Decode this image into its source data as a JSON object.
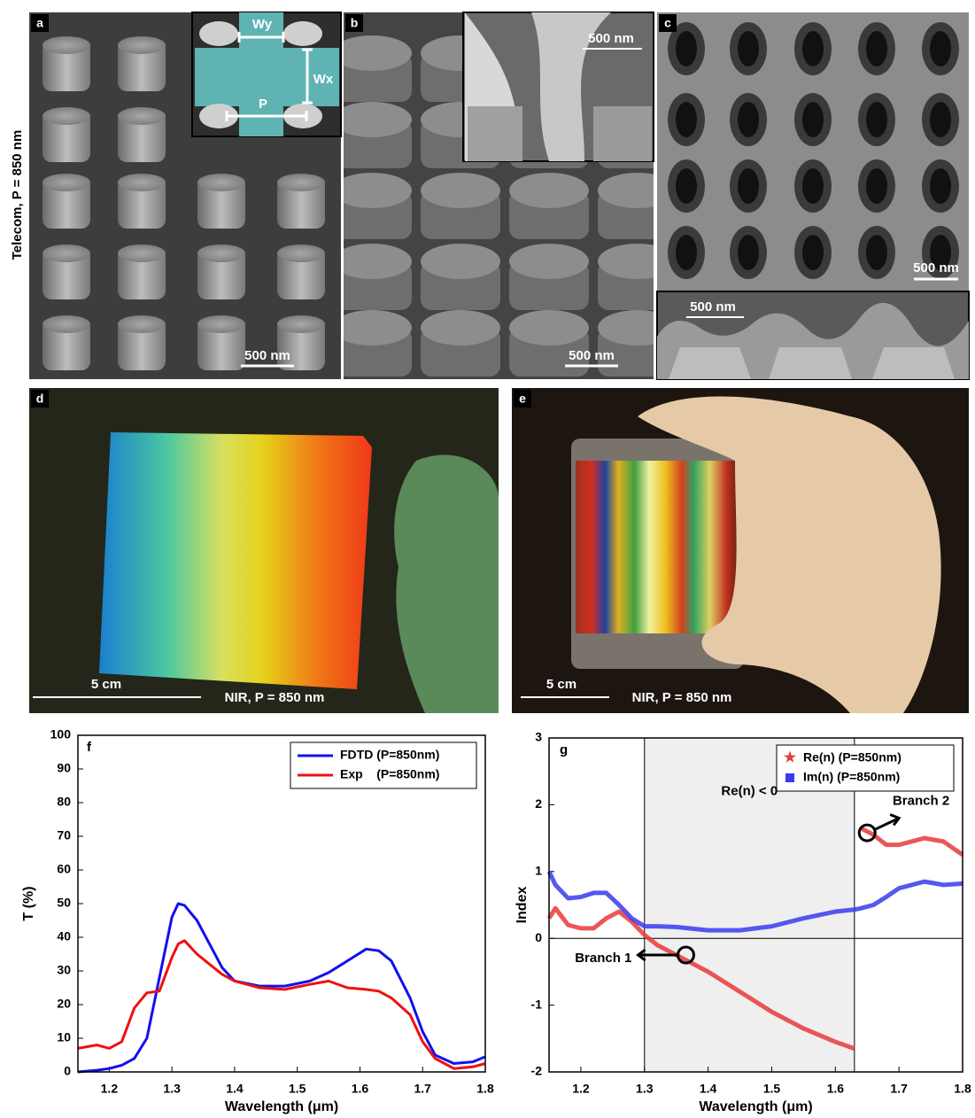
{
  "side_label": "Telecom, P = 850 nm",
  "panels": {
    "a": {
      "label": "a",
      "inset": {
        "wy": "Wy",
        "wx": "Wx",
        "p": "P"
      },
      "scale_bar": "500 nm"
    },
    "b": {
      "label": "b",
      "scale_bar": "500 nm",
      "inset_scale_bar": "500 nm"
    },
    "c": {
      "label": "c",
      "scale_bar": "500 nm",
      "lower_scale_bar": "500 nm"
    },
    "d": {
      "label": "d",
      "scale_bar": "5 cm",
      "caption": "NIR, P = 850 nm"
    },
    "e": {
      "label": "e",
      "scale_bar": "5 cm",
      "caption": "NIR, P = 850 nm"
    }
  },
  "chart_data": [
    {
      "type": "line",
      "panel_label": "f",
      "x_label": "Wavelength (μm)",
      "y_label": "T (%)",
      "x": [
        1.15,
        1.18,
        1.2,
        1.22,
        1.24,
        1.26,
        1.28,
        1.3,
        1.31,
        1.32,
        1.34,
        1.36,
        1.38,
        1.4,
        1.44,
        1.48,
        1.52,
        1.55,
        1.58,
        1.61,
        1.63,
        1.65,
        1.68,
        1.7,
        1.72,
        1.75,
        1.78,
        1.8
      ],
      "series": [
        {
          "name": "FDTD (P=850nm)",
          "color": "#1010f0",
          "values": [
            0,
            0.5,
            1,
            2,
            4,
            10,
            28,
            46,
            50,
            49.5,
            45,
            38,
            31,
            27,
            25.5,
            25.5,
            27,
            29.5,
            33,
            36.5,
            36,
            33,
            22,
            12,
            5,
            2.5,
            3,
            4.5
          ]
        },
        {
          "name": "Exp    (P=850nm)",
          "color": "#f01010",
          "values": [
            7,
            8,
            7,
            9,
            19,
            23.5,
            24,
            34,
            38,
            39,
            35,
            32,
            29,
            27,
            25,
            24.5,
            26,
            27,
            25,
            24.5,
            24,
            22,
            17,
            9,
            4,
            1,
            1.5,
            2.5
          ]
        }
      ],
      "xlim": [
        1.15,
        1.8
      ],
      "ylim": [
        0,
        100
      ],
      "xticks": [
        1.2,
        1.3,
        1.4,
        1.5,
        1.6,
        1.7,
        1.8
      ],
      "yticks": [
        0,
        10,
        20,
        30,
        40,
        50,
        60,
        70,
        80,
        90,
        100
      ],
      "legend": "upper right"
    },
    {
      "type": "line",
      "panel_label": "g",
      "x_label": "Wavelength (μm)",
      "y_label": "Index",
      "x": [
        1.15,
        1.16,
        1.18,
        1.2,
        1.22,
        1.24,
        1.26,
        1.28,
        1.3,
        1.32,
        1.35,
        1.4,
        1.45,
        1.5,
        1.55,
        1.6,
        1.63,
        1.635,
        1.64,
        1.66,
        1.68,
        1.7,
        1.74,
        1.77,
        1.8
      ],
      "series": [
        {
          "name": "Re(n) (P=850nm)",
          "color": "#e83a3a",
          "marker": "star",
          "values": [
            0.3,
            0.45,
            0.2,
            0.15,
            0.15,
            0.3,
            0.4,
            0.25,
            0.05,
            -0.1,
            -0.25,
            -0.5,
            -0.8,
            -1.1,
            -1.35,
            -1.55,
            -1.65,
            null,
            1.65,
            1.55,
            1.4,
            1.4,
            1.5,
            1.45,
            1.25
          ]
        },
        {
          "name": "Im(n) (P=850nm)",
          "color": "#3a3aee",
          "marker": "square",
          "values": [
            1.0,
            0.8,
            0.6,
            0.62,
            0.68,
            0.68,
            0.5,
            0.3,
            0.18,
            0.18,
            0.17,
            0.12,
            0.12,
            0.18,
            0.3,
            0.4,
            0.43,
            0.44,
            0.45,
            0.5,
            0.62,
            0.75,
            0.85,
            0.8,
            0.82
          ]
        }
      ],
      "xlim": [
        1.15,
        1.8
      ],
      "ylim": [
        -2,
        3
      ],
      "xticks": [
        1.2,
        1.3,
        1.4,
        1.5,
        1.6,
        1.7,
        1.8
      ],
      "yticks": [
        -2,
        -1,
        0,
        1,
        2,
        3
      ],
      "shade": [
        1.3,
        1.63
      ],
      "hline": 0,
      "legend": "upper right",
      "annotations": {
        "region": "Re(n) < 0",
        "branch1": "Branch 1",
        "branch2": "Branch 2"
      }
    }
  ]
}
